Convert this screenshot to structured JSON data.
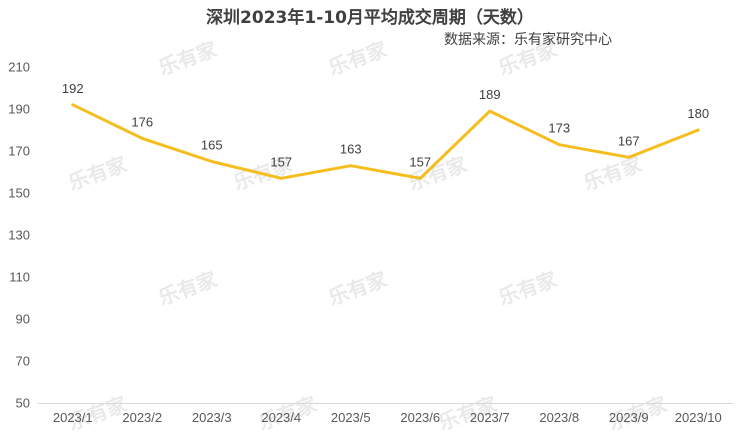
{
  "chart_data": {
    "type": "line",
    "title": "深圳2023年1-10月平均成交周期（天数）",
    "subtitle": "数据来源：乐有家研究中心",
    "categories": [
      "2023/1",
      "2023/2",
      "2023/3",
      "2023/4",
      "2023/5",
      "2023/6",
      "2023/7",
      "2023/8",
      "2023/9",
      "2023/10"
    ],
    "series": [
      {
        "values": [
          192,
          176,
          165,
          157,
          163,
          157,
          189,
          173,
          167,
          180
        ]
      }
    ],
    "ylim": [
      50,
      210
    ],
    "yticks": [
      50,
      70,
      90,
      110,
      130,
      150,
      170,
      190,
      210
    ],
    "grid": false,
    "legend": "none",
    "line_color": "#F5BE1E",
    "watermark": "乐有家"
  }
}
